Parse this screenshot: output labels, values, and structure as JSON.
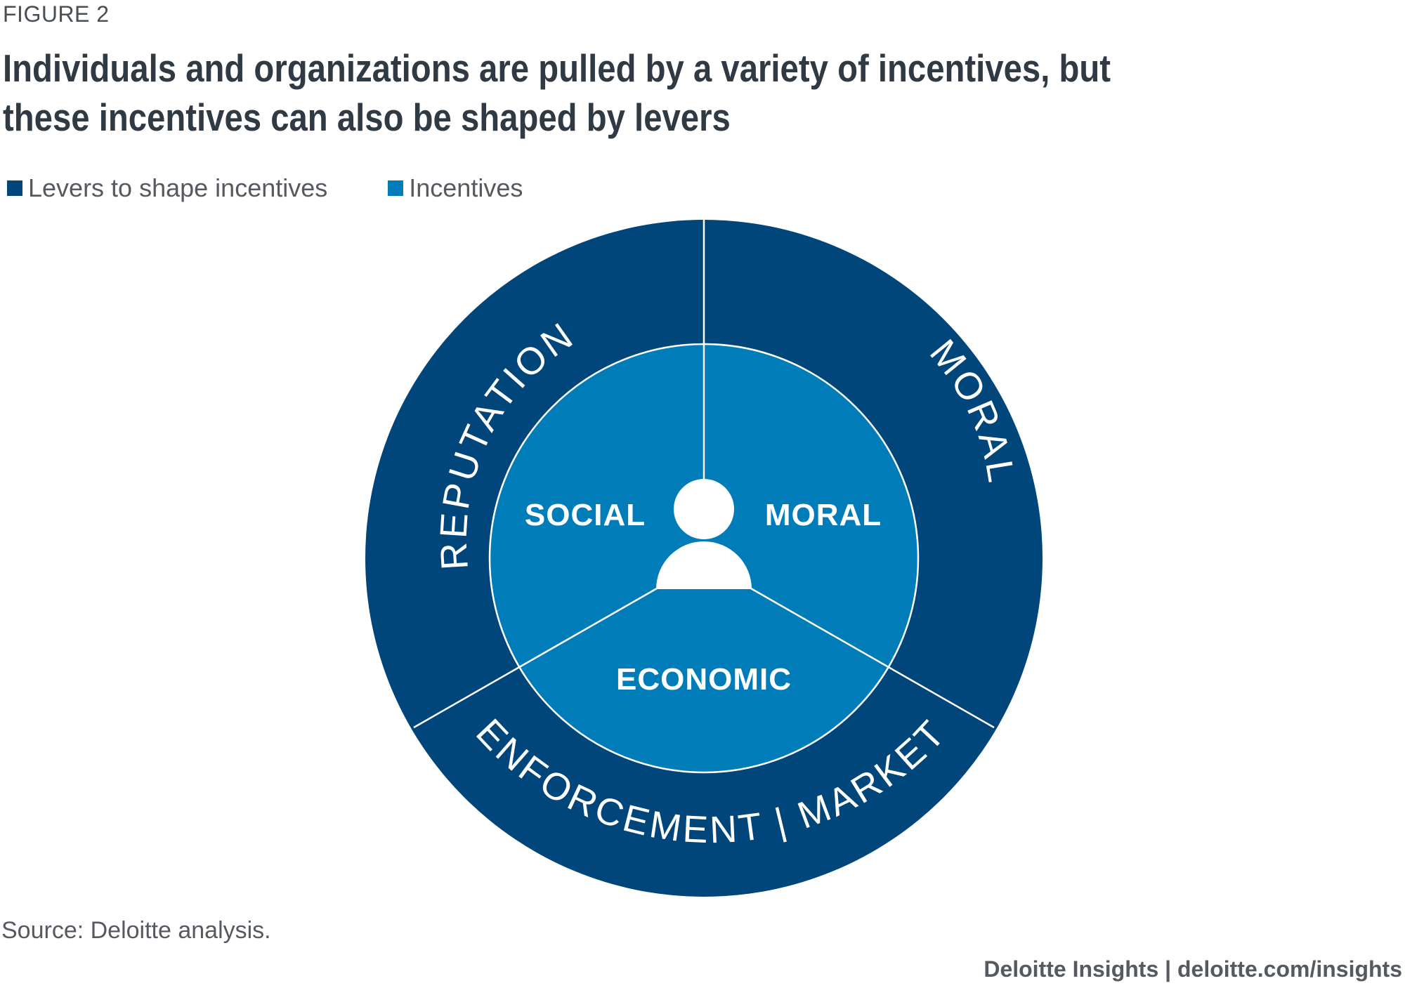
{
  "figure_label": "FIGURE 2",
  "title": "Individuals and organizations are pulled by a variety of incentives, but these incentives can also be shaped by levers",
  "legend": [
    {
      "label": "Levers to shape incentives",
      "color": "#00467a"
    },
    {
      "label": "Incentives",
      "color": "#007cb8"
    }
  ],
  "diagram": {
    "outer_ring": {
      "color": "#00467a",
      "segments": [
        "REPUTATION",
        "MORAL",
        "ENFORCEMENT | MARKET"
      ]
    },
    "inner_circle": {
      "color": "#007cb8",
      "segments": [
        "SOCIAL",
        "MORAL",
        "ECONOMIC"
      ]
    },
    "center_icon": "person-icon"
  },
  "source": "Source: Deloitte analysis.",
  "footer": "Deloitte Insights | deloitte.com/insights"
}
